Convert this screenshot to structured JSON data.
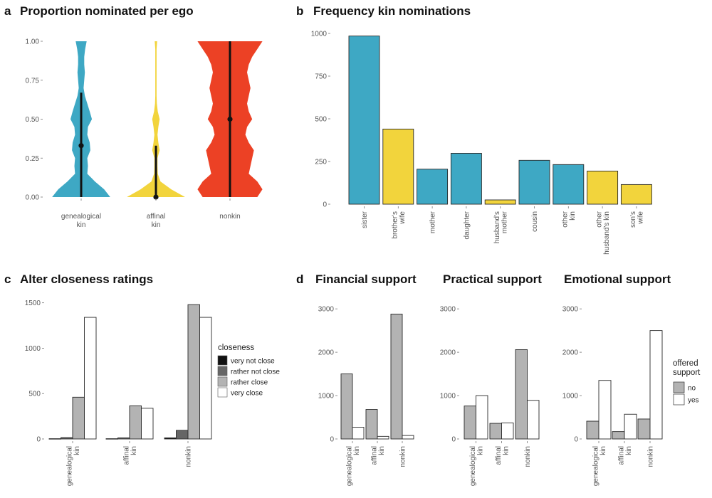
{
  "colors": {
    "genealogical": "#3ea8c4",
    "affinal": "#f2d43c",
    "nonkin": "#ec4125",
    "very_not_close": "#111111",
    "rather_not_close": "#666666",
    "rather_close": "#b3b3b3",
    "very_close": "#ffffff",
    "no": "#b3b3b3",
    "yes": "#ffffff"
  },
  "panels": {
    "a": {
      "label": "a",
      "title": "Proportion nominated per ego"
    },
    "b": {
      "label": "b",
      "title": "Frequency kin nominations"
    },
    "c": {
      "label": "c",
      "title": "Alter closeness ratings"
    },
    "d": {
      "label": "d",
      "titles": [
        "Financial support",
        "Practical support",
        "Emotional support"
      ]
    }
  },
  "chart_data": [
    {
      "id": "a",
      "type": "violin",
      "title": "Proportion nominated per ego",
      "categories": [
        "genealogical kin",
        "affinal kin",
        "nonkin"
      ],
      "ylim": [
        0,
        1
      ],
      "yticks": [
        "0.00",
        "0.25",
        "0.50",
        "0.75",
        "1.00"
      ],
      "medians": [
        0.33,
        0.0,
        0.5
      ],
      "iqr_lines": [
        [
          0.0,
          0.67
        ],
        [
          0.0,
          0.33
        ],
        [
          0.0,
          1.0
        ]
      ],
      "density_profiles": [
        [
          0.95,
          0.75,
          0.45,
          0.2,
          0.22,
          0.2,
          0.3,
          0.28,
          0.2,
          0.22,
          0.35,
          0.28,
          0.2,
          0.12,
          0.08,
          0.1,
          0.12,
          0.1,
          0.1,
          0.13,
          0.18
        ],
        [
          0.95,
          0.5,
          0.15,
          0.06,
          0.05,
          0.05,
          0.12,
          0.08,
          0.05,
          0.08,
          0.12,
          0.06,
          0.03,
          0.02,
          0.02,
          0.02,
          0.02,
          0.02,
          0.02,
          0.02,
          0.04
        ],
        [
          0.8,
          0.95,
          0.8,
          0.55,
          0.6,
          0.65,
          0.7,
          0.55,
          0.45,
          0.5,
          0.65,
          0.55,
          0.5,
          0.55,
          0.6,
          0.55,
          0.5,
          0.55,
          0.65,
          0.8,
          0.95
        ]
      ]
    },
    {
      "id": "b",
      "type": "bar",
      "title": "Frequency kin nominations",
      "categories": [
        "sister",
        "brother's wife",
        "mother",
        "daughter",
        "husband's mother",
        "cousin",
        "other kin",
        "other husband's kin",
        "son's wife"
      ],
      "values": [
        985,
        440,
        205,
        298,
        25,
        257,
        232,
        194,
        115
      ],
      "groups": [
        "genealogical",
        "affinal",
        "genealogical",
        "genealogical",
        "affinal",
        "genealogical",
        "genealogical",
        "affinal",
        "affinal"
      ],
      "ylim": [
        0,
        1000
      ],
      "yticks": [
        "0",
        "250",
        "500",
        "750",
        "1000"
      ]
    },
    {
      "id": "c",
      "type": "bar",
      "title": "Alter closeness ratings",
      "categories": [
        "genealogical kin",
        "affinal kin",
        "nonkin"
      ],
      "series": [
        {
          "name": "very not close",
          "key": "very_not_close",
          "values": [
            3,
            3,
            12
          ]
        },
        {
          "name": "rather not close",
          "key": "rather_not_close",
          "values": [
            15,
            12,
            95
          ]
        },
        {
          "name": "rather close",
          "key": "rather_close",
          "values": [
            460,
            365,
            1480
          ]
        },
        {
          "name": "very close",
          "key": "very_close",
          "values": [
            1340,
            338,
            1340
          ]
        }
      ],
      "legend_title": "closeness",
      "ylim": [
        0,
        1560
      ],
      "yticks": [
        "0",
        "500",
        "1000",
        "1500"
      ]
    },
    {
      "id": "d1",
      "type": "bar",
      "title": "Financial support",
      "categories": [
        "genealogical kin",
        "affinal kin",
        "nonkin"
      ],
      "series": [
        {
          "name": "no",
          "key": "no",
          "values": [
            1500,
            680,
            2880
          ]
        },
        {
          "name": "yes",
          "key": "yes",
          "values": [
            270,
            60,
            80
          ]
        }
      ],
      "ylim": [
        0,
        3150
      ],
      "yticks": [
        "0",
        "1000",
        "2000",
        "3000"
      ]
    },
    {
      "id": "d2",
      "type": "bar",
      "title": "Practical support",
      "categories": [
        "genealogical kin",
        "affinal kin",
        "nonkin"
      ],
      "series": [
        {
          "name": "no",
          "key": "no",
          "values": [
            760,
            360,
            2060
          ]
        },
        {
          "name": "yes",
          "key": "yes",
          "values": [
            1000,
            370,
            890
          ]
        }
      ],
      "ylim": [
        0,
        3150
      ],
      "yticks": [
        "0",
        "1000",
        "2000",
        "3000"
      ]
    },
    {
      "id": "d3",
      "type": "bar",
      "title": "Emotional support",
      "categories": [
        "genealogical kin",
        "affinal kin",
        "nonkin"
      ],
      "series": [
        {
          "name": "no",
          "key": "no",
          "values": [
            410,
            170,
            460
          ]
        },
        {
          "name": "yes",
          "key": "yes",
          "values": [
            1350,
            570,
            2500
          ]
        }
      ],
      "legend_title": "offered support",
      "ylim": [
        0,
        3150
      ],
      "yticks": [
        "0",
        "1000",
        "2000",
        "3000"
      ]
    }
  ]
}
